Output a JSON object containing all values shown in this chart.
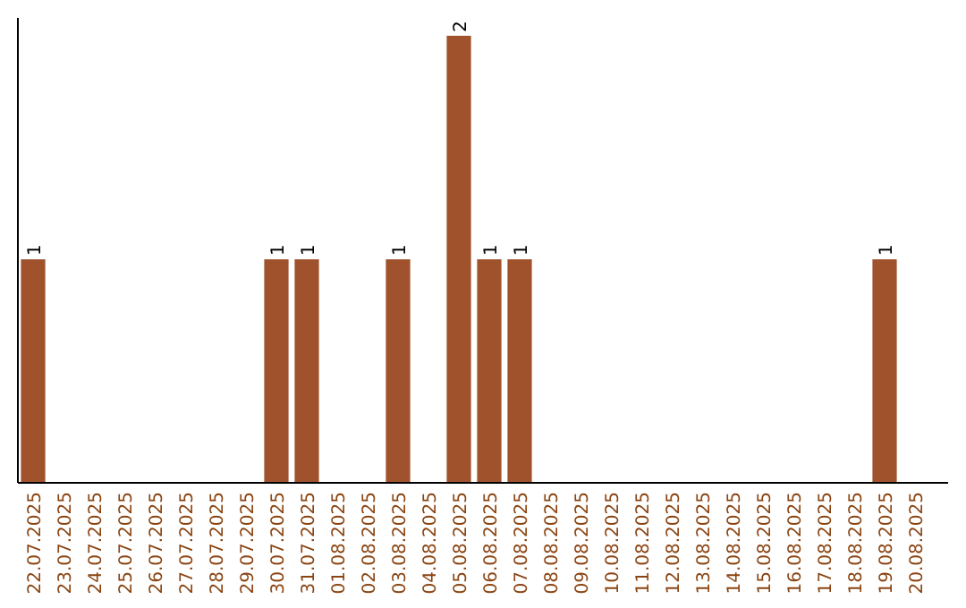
{
  "chart_data": {
    "type": "bar",
    "categories": [
      "22.07.2025",
      "23.07.2025",
      "24.07.2025",
      "25.07.2025",
      "26.07.2025",
      "27.07.2025",
      "28.07.2025",
      "29.07.2025",
      "30.07.2025",
      "31.07.2025",
      "01.08.2025",
      "02.08.2025",
      "03.08.2025",
      "04.08.2025",
      "05.08.2025",
      "06.08.2025",
      "07.08.2025",
      "08.08.2025",
      "09.08.2025",
      "10.08.2025",
      "11.08.2025",
      "12.08.2025",
      "13.08.2025",
      "14.08.2025",
      "15.08.2025",
      "16.08.2025",
      "17.08.2025",
      "18.08.2025",
      "19.08.2025",
      "20.08.2025"
    ],
    "values": [
      1,
      0,
      0,
      0,
      0,
      0,
      0,
      0,
      1,
      1,
      0,
      0,
      1,
      0,
      2,
      1,
      1,
      0,
      0,
      0,
      0,
      0,
      0,
      0,
      0,
      0,
      0,
      0,
      1,
      0
    ],
    "value_labels": [
      "1",
      null,
      null,
      null,
      null,
      null,
      null,
      null,
      "1",
      "1",
      null,
      null,
      "1",
      null,
      "2",
      "1",
      "1",
      null,
      null,
      null,
      null,
      null,
      null,
      null,
      null,
      null,
      null,
      null,
      "1",
      null
    ],
    "color": "#a0522d",
    "tick_labels": "x"
  }
}
